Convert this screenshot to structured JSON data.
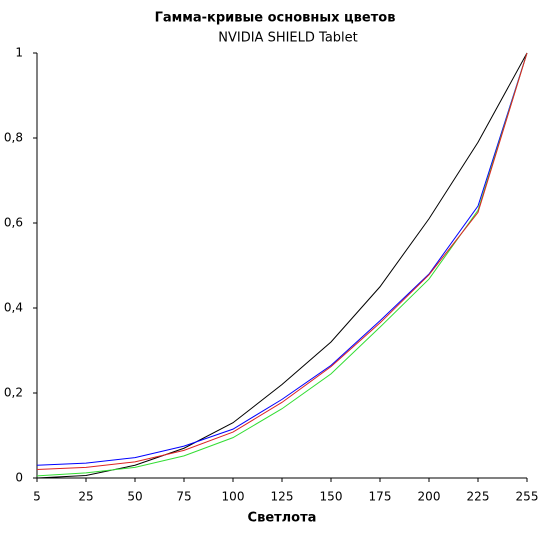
{
  "chart_data": {
    "type": "line",
    "title": "Гамма-кривые  основных цветов",
    "subtitle": "NVIDIA SHIELD Tablet",
    "x_label": "Светлота",
    "categories": [
      "5",
      "25",
      "50",
      "75",
      "100",
      "125",
      "150",
      "175",
      "200",
      "225",
      "255"
    ],
    "series": [
      {
        "color": "#000000",
        "values": [
          0.0,
          0.006,
          0.03,
          0.07,
          0.13,
          0.22,
          0.32,
          0.45,
          0.61,
          0.79,
          1.0
        ]
      },
      {
        "color": "#0000ff",
        "values": [
          0.03,
          0.035,
          0.048,
          0.075,
          0.115,
          0.185,
          0.265,
          0.37,
          0.48,
          0.64,
          1.0
        ]
      },
      {
        "color": "#33dd33",
        "values": [
          0.005,
          0.012,
          0.025,
          0.052,
          0.095,
          0.163,
          0.245,
          0.355,
          0.468,
          0.63,
          1.0
        ]
      },
      {
        "color": "#dd2222",
        "values": [
          0.02,
          0.025,
          0.038,
          0.065,
          0.108,
          0.178,
          0.262,
          0.365,
          0.478,
          0.625,
          1.0
        ]
      }
    ],
    "ylim": [
      0,
      1
    ],
    "yticks": [
      0,
      {
        "value": 0.2,
        "label": "0,2"
      },
      {
        "value": 0.4,
        "label": "0,4"
      },
      {
        "value": 0.6,
        "label": "0,6"
      },
      {
        "value": 0.8,
        "label": "0,8"
      },
      1
    ],
    "grid": false
  }
}
